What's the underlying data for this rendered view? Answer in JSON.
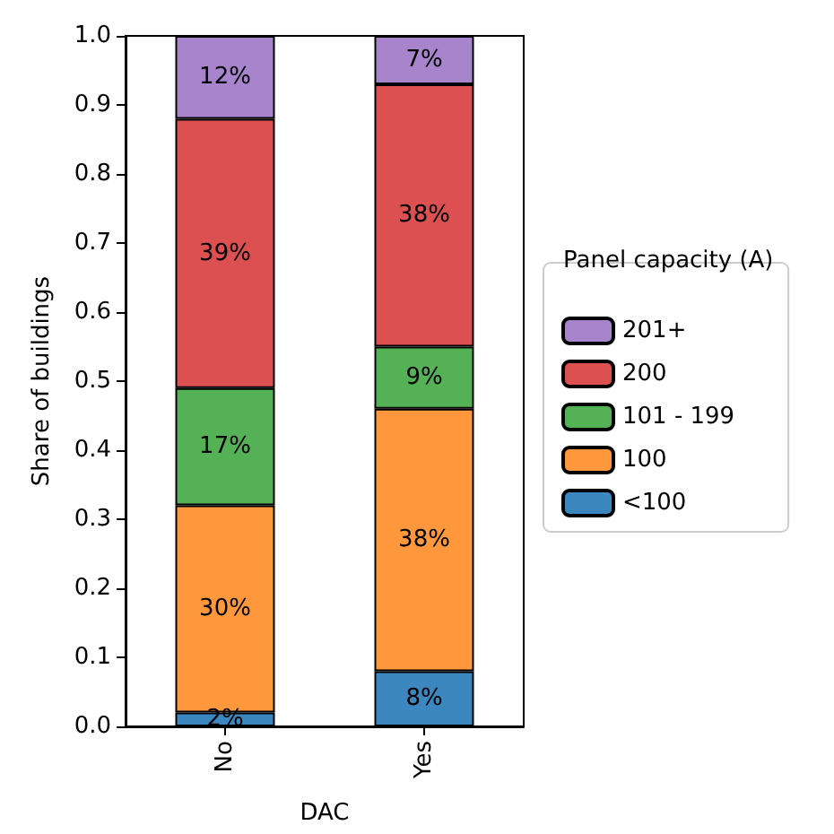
{
  "chart_data": {
    "type": "bar",
    "stacked": true,
    "xlabel": "DAC",
    "ylabel": "Share of buildings",
    "legend_title": "Panel capacity (A)",
    "legend": "right",
    "grid": false,
    "categories": [
      "No",
      "Yes"
    ],
    "ylim": [
      0,
      1
    ],
    "yticks": [
      {
        "value": 0,
        "label": "0.0"
      },
      0.1,
      0.2,
      0.3,
      0.4,
      0.5,
      0.6,
      0.7,
      0.8,
      0.9,
      {
        "value": 1,
        "label": "1.0"
      }
    ],
    "series": [
      {
        "name": "<100",
        "color": "#3d87c0",
        "values": [
          0.02,
          0.08
        ],
        "value_labels": [
          "2%",
          "8%"
        ]
      },
      {
        "name": "100",
        "color": "#ff983c",
        "values": [
          0.3,
          0.38
        ],
        "value_labels": [
          "30%",
          "38%"
        ]
      },
      {
        "name": "101 - 199",
        "color": "#55b155",
        "values": [
          0.17,
          0.09
        ],
        "value_labels": [
          "17%",
          "9%"
        ]
      },
      {
        "name": "200",
        "color": "#dc5052",
        "values": [
          0.39,
          0.38
        ],
        "value_labels": [
          "39%",
          "38%"
        ]
      },
      {
        "name": "201+",
        "color": "#a784cb",
        "values": [
          0.12,
          0.07
        ],
        "value_labels": [
          "12%",
          "7%"
        ]
      }
    ]
  }
}
